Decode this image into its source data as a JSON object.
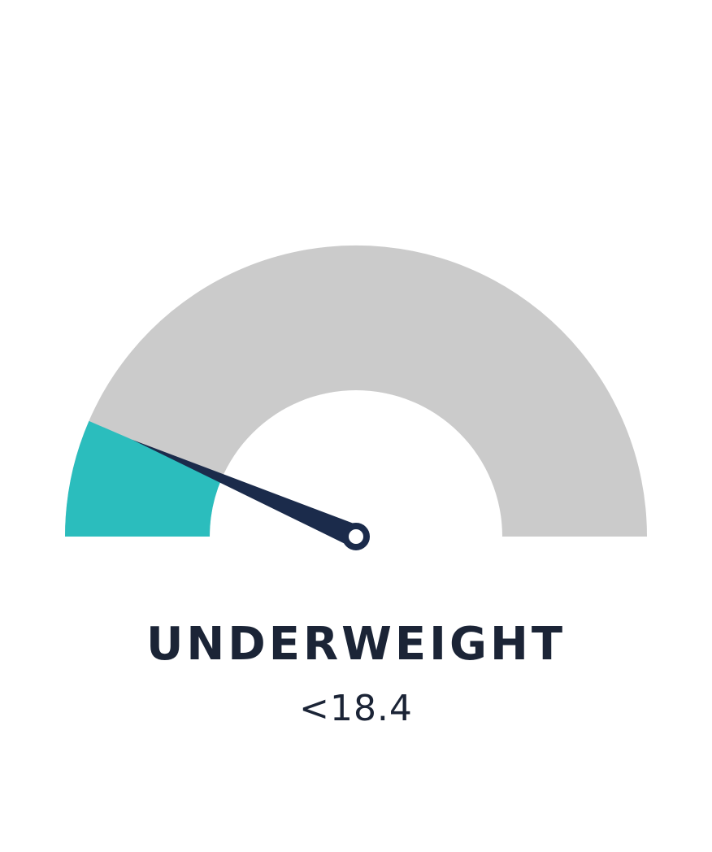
{
  "chart_data": {
    "type": "gauge",
    "title": "",
    "category_label": "UNDERWEIGHT",
    "range_label": "<18.4",
    "filled_fraction": 0.13,
    "needle_fraction": 0.13,
    "colors": {
      "track": "#cbcbcb",
      "fill": "#2bbdbd",
      "needle": "#1b2b4b",
      "hub_fill": "#ffffff",
      "text": "#1b2436"
    }
  }
}
